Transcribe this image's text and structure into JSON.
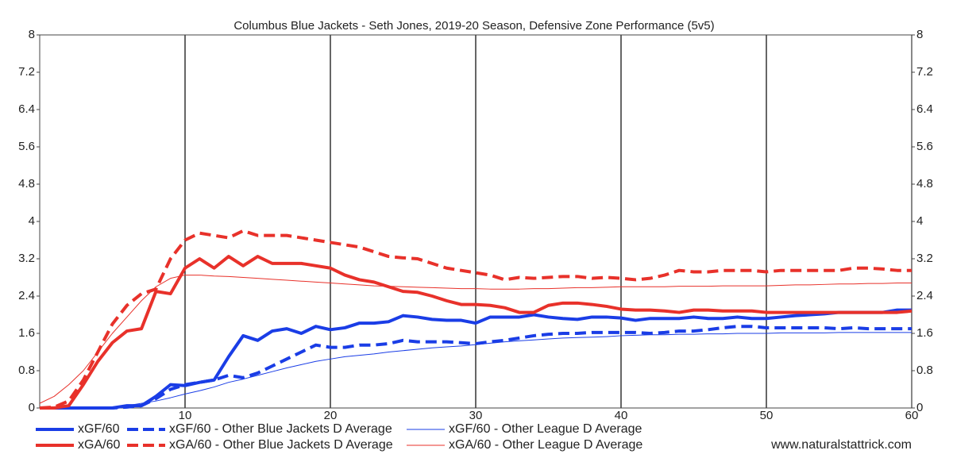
{
  "chart_data": {
    "type": "line",
    "title": "Columbus Blue Jackets - Seth Jones, 2019-20 Season, Defensive Zone Performance (5v5)",
    "source": "www.naturalstattrick.com",
    "x": [
      0,
      1,
      2,
      3,
      4,
      5,
      6,
      7,
      8,
      9,
      10,
      11,
      12,
      13,
      14,
      15,
      16,
      17,
      18,
      19,
      20,
      21,
      22,
      23,
      24,
      25,
      26,
      27,
      28,
      29,
      30,
      31,
      32,
      33,
      34,
      35,
      36,
      37,
      38,
      39,
      40,
      41,
      42,
      43,
      44,
      45,
      46,
      47,
      48,
      49,
      50,
      51,
      52,
      53,
      54,
      55,
      56,
      57,
      58,
      59,
      60
    ],
    "xlim": [
      0,
      60
    ],
    "xticks": [
      10,
      20,
      30,
      40,
      50,
      60
    ],
    "ylim": [
      0,
      8
    ],
    "yticks": [
      0,
      0.8,
      1.6,
      2.4,
      3.2,
      4,
      4.8,
      5.6,
      6.4,
      7.2,
      8
    ],
    "y2lim": [
      0,
      8
    ],
    "y2ticks": [
      0,
      0.8,
      1.6,
      2.4,
      3.2,
      4,
      4.8,
      5.6,
      6.4,
      7.2,
      8
    ],
    "grid": "vertical",
    "series": [
      {
        "name": "xGF/60",
        "color": "#1a3de6",
        "style": "solid",
        "weight": "thick",
        "values": [
          0,
          0,
          0,
          0,
          0,
          0,
          0.05,
          0.05,
          0.25,
          0.5,
          0.48,
          0.55,
          0.6,
          1.1,
          1.55,
          1.45,
          1.65,
          1.7,
          1.6,
          1.75,
          1.68,
          1.72,
          1.82,
          1.82,
          1.85,
          1.98,
          1.95,
          1.9,
          1.88,
          1.88,
          1.82,
          1.95,
          1.95,
          1.95,
          2.0,
          1.95,
          1.92,
          1.9,
          1.95,
          1.95,
          1.93,
          1.88,
          1.92,
          1.92,
          1.92,
          1.95,
          1.92,
          1.92,
          1.95,
          1.92,
          1.92,
          1.95,
          1.98,
          2.0,
          2.02,
          2.05,
          2.05,
          2.05,
          2.05,
          2.1,
          2.1
        ]
      },
      {
        "name": "xGF/60 - Other Blue Jackets D Average",
        "color": "#1a3de6",
        "style": "dashed",
        "weight": "thick",
        "values": [
          0,
          0,
          0,
          0,
          0,
          0,
          0.02,
          0.05,
          0.2,
          0.4,
          0.5,
          0.55,
          0.6,
          0.7,
          0.65,
          0.75,
          0.9,
          1.05,
          1.2,
          1.35,
          1.3,
          1.3,
          1.35,
          1.35,
          1.38,
          1.45,
          1.42,
          1.42,
          1.42,
          1.4,
          1.38,
          1.42,
          1.45,
          1.5,
          1.55,
          1.58,
          1.6,
          1.6,
          1.62,
          1.62,
          1.62,
          1.62,
          1.6,
          1.62,
          1.65,
          1.65,
          1.68,
          1.72,
          1.75,
          1.75,
          1.72,
          1.72,
          1.72,
          1.72,
          1.72,
          1.7,
          1.72,
          1.7,
          1.7,
          1.7,
          1.7
        ]
      },
      {
        "name": "xGF/60 - Other League D Average",
        "color": "#1a3de6",
        "style": "solid",
        "weight": "thin",
        "values": [
          0,
          0,
          0,
          0,
          0,
          0.02,
          0.05,
          0.1,
          0.15,
          0.22,
          0.3,
          0.37,
          0.45,
          0.55,
          0.62,
          0.7,
          0.78,
          0.86,
          0.93,
          1.0,
          1.05,
          1.1,
          1.13,
          1.16,
          1.2,
          1.23,
          1.26,
          1.29,
          1.31,
          1.33,
          1.36,
          1.39,
          1.42,
          1.44,
          1.46,
          1.48,
          1.5,
          1.51,
          1.52,
          1.53,
          1.55,
          1.56,
          1.57,
          1.57,
          1.58,
          1.58,
          1.59,
          1.59,
          1.6,
          1.6,
          1.6,
          1.61,
          1.61,
          1.61,
          1.61,
          1.62,
          1.62,
          1.62,
          1.62,
          1.62,
          1.62
        ]
      },
      {
        "name": "xGA/60",
        "color": "#e8312a",
        "style": "solid",
        "weight": "thick",
        "values": [
          0,
          0,
          0.05,
          0.5,
          1.0,
          1.4,
          1.65,
          1.7,
          2.5,
          2.45,
          3.0,
          3.2,
          3.0,
          3.25,
          3.05,
          3.25,
          3.1,
          3.1,
          3.1,
          3.05,
          3.0,
          2.85,
          2.75,
          2.7,
          2.6,
          2.5,
          2.48,
          2.4,
          2.3,
          2.22,
          2.22,
          2.2,
          2.15,
          2.05,
          2.05,
          2.2,
          2.25,
          2.25,
          2.22,
          2.18,
          2.12,
          2.1,
          2.1,
          2.08,
          2.05,
          2.1,
          2.1,
          2.08,
          2.08,
          2.08,
          2.05,
          2.05,
          2.05,
          2.05,
          2.05,
          2.05,
          2.05,
          2.05,
          2.05,
          2.05,
          2.08
        ]
      },
      {
        "name": "xGA/60 - Other Blue Jackets D Average",
        "color": "#e8312a",
        "style": "dashed",
        "weight": "thick",
        "values": [
          0,
          0.02,
          0.15,
          0.6,
          1.2,
          1.8,
          2.2,
          2.45,
          2.55,
          3.2,
          3.6,
          3.75,
          3.7,
          3.65,
          3.8,
          3.7,
          3.7,
          3.7,
          3.65,
          3.6,
          3.55,
          3.5,
          3.45,
          3.35,
          3.25,
          3.22,
          3.2,
          3.1,
          3.0,
          2.95,
          2.9,
          2.85,
          2.75,
          2.8,
          2.78,
          2.8,
          2.82,
          2.82,
          2.78,
          2.8,
          2.78,
          2.75,
          2.78,
          2.85,
          2.95,
          2.92,
          2.92,
          2.95,
          2.95,
          2.95,
          2.92,
          2.95,
          2.95,
          2.95,
          2.95,
          2.95,
          3.0,
          3.0,
          2.98,
          2.95,
          2.95
        ]
      },
      {
        "name": "xGA/60 - Other League D Average",
        "color": "#e8312a",
        "style": "solid",
        "weight": "thin",
        "values": [
          0.1,
          0.25,
          0.5,
          0.8,
          1.2,
          1.6,
          1.95,
          2.3,
          2.6,
          2.78,
          2.85,
          2.85,
          2.83,
          2.82,
          2.8,
          2.78,
          2.76,
          2.74,
          2.72,
          2.7,
          2.68,
          2.66,
          2.64,
          2.62,
          2.61,
          2.6,
          2.59,
          2.58,
          2.57,
          2.56,
          2.56,
          2.55,
          2.55,
          2.55,
          2.56,
          2.56,
          2.57,
          2.58,
          2.58,
          2.59,
          2.6,
          2.6,
          2.6,
          2.6,
          2.61,
          2.61,
          2.61,
          2.62,
          2.62,
          2.62,
          2.62,
          2.63,
          2.64,
          2.64,
          2.65,
          2.66,
          2.66,
          2.67,
          2.67,
          2.68,
          2.68
        ]
      }
    ]
  }
}
